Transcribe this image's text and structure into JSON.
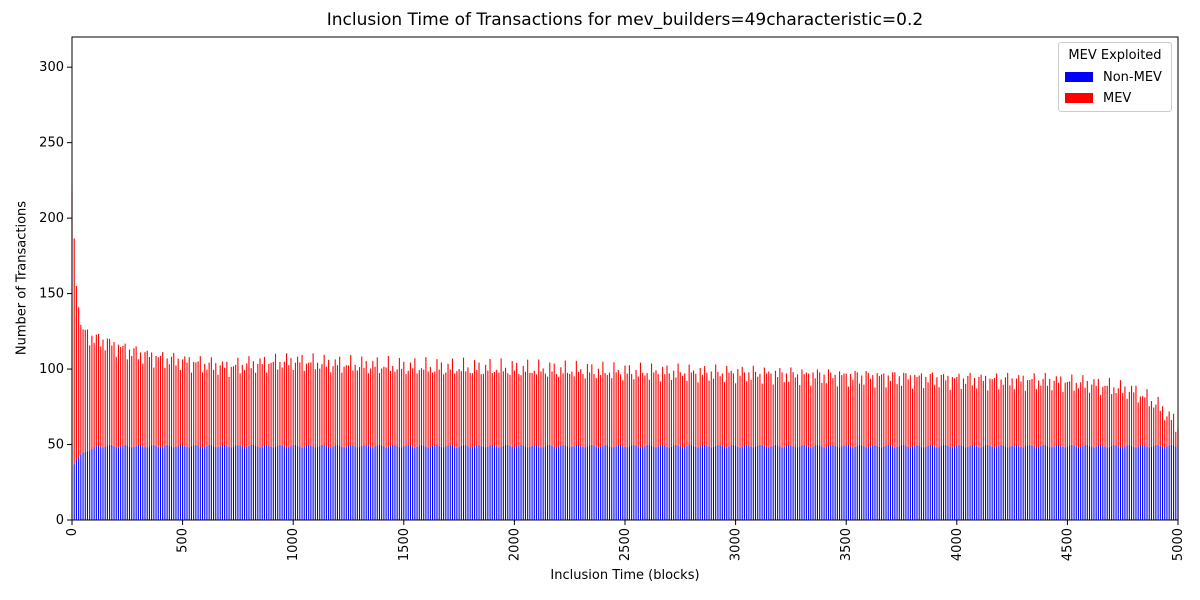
{
  "chart_data": {
    "type": "bar",
    "stacked": true,
    "title": "Inclusion Time of Transactions for mev_builders=49characteristic=0.2",
    "xlabel": "Inclusion Time (blocks)",
    "ylabel": "Number of Transactions",
    "xlim": [
      0,
      5000
    ],
    "ylim": [
      0,
      320
    ],
    "x_ticks": [
      "0",
      "500",
      "1000",
      "1500",
      "2000",
      "2500",
      "3000",
      "3500",
      "4000",
      "4500",
      "5000"
    ],
    "y_ticks": [
      "0",
      "50",
      "100",
      "150",
      "200",
      "250",
      "300"
    ],
    "grid": false,
    "legend_title": "MEV Exploited",
    "legend_position": "top-right",
    "bar_step": 10,
    "series": [
      {
        "name": "Non-MEV",
        "color": "#0000ff"
      },
      {
        "name": "MEV",
        "color": "#ff0000"
      }
    ],
    "x": [
      0,
      20,
      40,
      60,
      80,
      100,
      150,
      200,
      300,
      400,
      500,
      560,
      600,
      660,
      700,
      800,
      1000,
      1200,
      1400,
      1600,
      2000,
      2500,
      3000,
      3500,
      3800,
      4000,
      4400,
      4600,
      4700,
      4800,
      4840,
      4900,
      4950,
      5000
    ],
    "total": [
      218,
      155,
      127,
      124,
      122,
      120,
      118,
      115,
      110,
      107,
      105,
      104,
      103,
      102,
      101,
      103,
      105,
      103,
      102,
      101,
      100,
      98,
      97,
      95,
      94,
      93,
      92,
      90,
      88,
      85,
      82,
      77,
      70,
      62
    ],
    "non_mev": [
      34,
      40,
      43,
      45,
      47,
      48,
      49,
      49,
      49,
      49,
      49,
      49,
      49,
      49,
      49,
      49,
      49,
      49,
      49,
      49,
      49,
      49,
      49,
      49,
      49,
      49,
      49,
      49,
      49,
      49,
      49,
      49,
      49,
      49
    ]
  },
  "legend": {
    "title": "MEV Exploited",
    "items": [
      "Non-MEV",
      "MEV"
    ]
  }
}
